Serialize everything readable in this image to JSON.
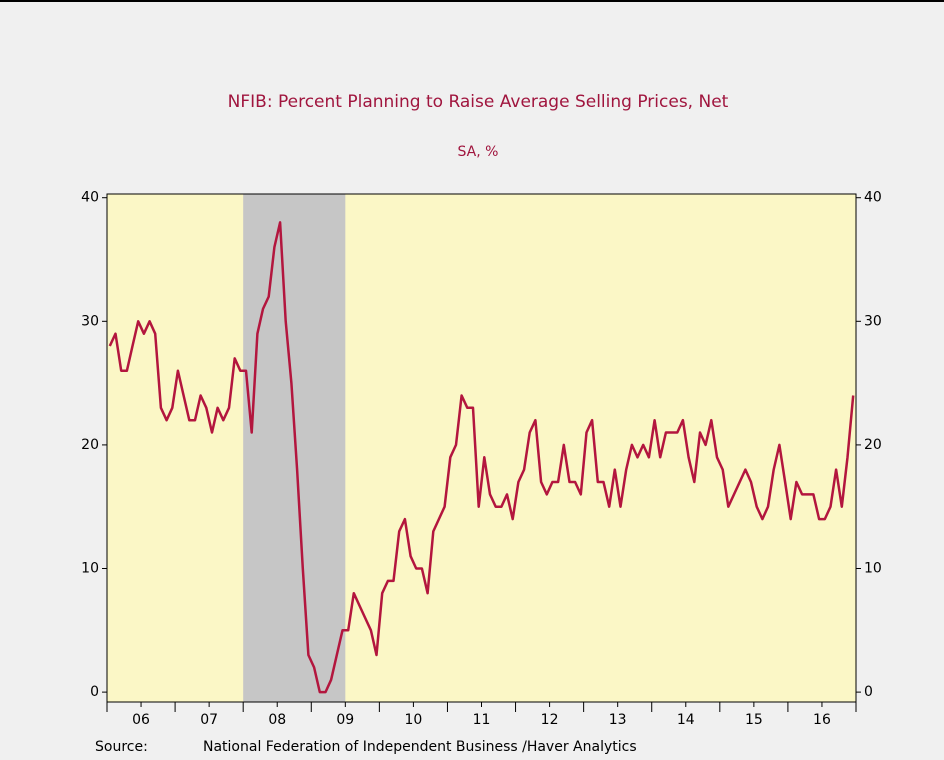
{
  "chart_data": {
    "type": "line",
    "title": "NFIB: Percent Planning to Raise Average Selling Prices, Net",
    "subtitle": "SA, %",
    "source_label": "Source:",
    "source": "National Federation of Independent Business /Haver Analytics",
    "xlim": [
      2006,
      2017
    ],
    "xticks": [
      {
        "value": 2006.5,
        "label": "06"
      },
      {
        "value": 2007.5,
        "label": "07"
      },
      {
        "value": 2008.5,
        "label": "08"
      },
      {
        "value": 2009.5,
        "label": "09"
      },
      {
        "value": 2010.5,
        "label": "10"
      },
      {
        "value": 2011.5,
        "label": "11"
      },
      {
        "value": 2012.5,
        "label": "12"
      },
      {
        "value": 2013.5,
        "label": "13"
      },
      {
        "value": 2014.5,
        "label": "14"
      },
      {
        "value": 2015.5,
        "label": "15"
      },
      {
        "value": 2016.5,
        "label": "16"
      }
    ],
    "xminor_ticks": [
      2006,
      2007,
      2008,
      2009,
      2010,
      2011,
      2012,
      2013,
      2014,
      2015,
      2016,
      2017
    ],
    "ylim": [
      -0.8,
      40.3
    ],
    "yticks": [
      0,
      10,
      20,
      30,
      40
    ],
    "recessions": [
      [
        2008,
        2009.5
      ]
    ],
    "recession_color": "#c6c6c6",
    "plot_background": "#fbf7c6",
    "series": [
      {
        "color": "#b3163e",
        "values": [
          28,
          29,
          26,
          26,
          28,
          30,
          29,
          30,
          29,
          23,
          22,
          23,
          26,
          24,
          22,
          22,
          24,
          23,
          21,
          23,
          22,
          23,
          27,
          26,
          26,
          21,
          29,
          31,
          32,
          36,
          38,
          30,
          25,
          18,
          10,
          3,
          2,
          0,
          0,
          1,
          3,
          5,
          5,
          8,
          7,
          6,
          5,
          3,
          8,
          9,
          9,
          13,
          14,
          11,
          10,
          10,
          8,
          13,
          14,
          15,
          19,
          20,
          24,
          23,
          23,
          15,
          19,
          16,
          15,
          15,
          16,
          14,
          17,
          18,
          21,
          22,
          17,
          16,
          17,
          17,
          20,
          17,
          17,
          16,
          21,
          22,
          17,
          17,
          15,
          18,
          15,
          18,
          20,
          19,
          20,
          19,
          22,
          19,
          21,
          21,
          21,
          22,
          19,
          17,
          21,
          20,
          22,
          19,
          18,
          15,
          16,
          17,
          18,
          17,
          15,
          14,
          15,
          18,
          20,
          17,
          14,
          17,
          16,
          16,
          16,
          14,
          14,
          15,
          18,
          15,
          19,
          24
        ]
      }
    ]
  }
}
